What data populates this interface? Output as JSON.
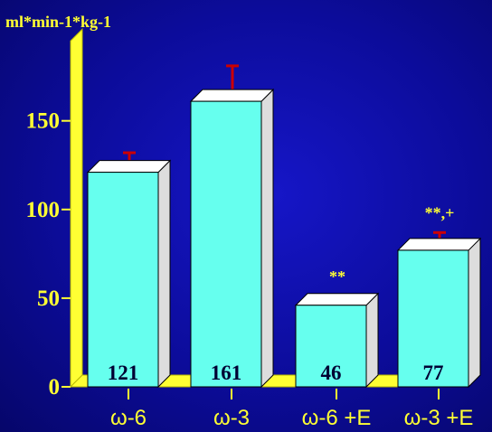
{
  "chart_data": {
    "type": "bar",
    "ylabel": "ml*min-1*kg-1",
    "categories": [
      "ω-6",
      "ω-3",
      "ω-6 +E",
      "ω-3 +E"
    ],
    "values": [
      121,
      161,
      46,
      77
    ],
    "error_upper": [
      132,
      181,
      51,
      87
    ],
    "annotations": [
      "",
      "",
      "**",
      "**,+"
    ],
    "y_ticks": [
      0,
      50,
      100,
      150
    ],
    "ylim": [
      0,
      190
    ],
    "grid": false,
    "legend": "none",
    "colors": {
      "bar_front": "#66ffee",
      "bar_top": "#ffffff",
      "bar_side": "#dddddd",
      "error_bar": "#cc0000",
      "axis": "#ffff33",
      "text": "#ffff33",
      "value_text": "#000033"
    }
  }
}
